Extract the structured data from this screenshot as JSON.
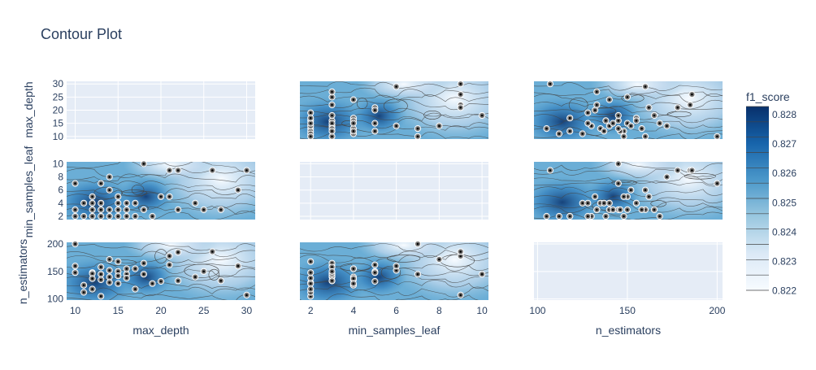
{
  "page": {
    "title": "Contour Plot"
  },
  "chart_data": {
    "type": "contour",
    "title": "Contour Plot",
    "params": [
      "max_depth",
      "min_samples_leaf",
      "n_estimators"
    ],
    "ranges": {
      "max_depth": [
        9,
        31
      ],
      "min_samples_leaf": [
        1.5,
        10.3
      ],
      "n_estimators": [
        98,
        203
      ]
    },
    "ticks": {
      "max_depth": {
        "x": [
          10,
          15,
          20,
          25,
          30
        ],
        "y": [
          10,
          15,
          20,
          25,
          30
        ]
      },
      "min_samples_leaf": {
        "x": [
          2,
          4,
          6,
          8,
          10
        ],
        "y": [
          2,
          4,
          6,
          8,
          10
        ]
      },
      "n_estimators": {
        "x": [
          100,
          150,
          200
        ],
        "y": [
          100,
          150,
          200
        ]
      }
    },
    "colorbar": {
      "title": "f1_score",
      "ticks": [
        "0.828",
        "0.827",
        "0.826",
        "0.825",
        "0.824",
        "0.823",
        "0.822"
      ],
      "colors": [
        "#08306b",
        "#1764ab",
        "#4b98ca",
        "#9ac8e0",
        "#dbe9f6",
        "#f7fbff"
      ]
    },
    "trials": [
      {
        "max_depth": 13,
        "min_samples_leaf": 2,
        "n_estimators": 105
      },
      {
        "max_depth": 14,
        "min_samples_leaf": 3,
        "n_estimators": 140
      },
      {
        "max_depth": 12,
        "min_samples_leaf": 2,
        "n_estimators": 118
      },
      {
        "max_depth": 15,
        "min_samples_leaf": 5,
        "n_estimators": 150
      },
      {
        "max_depth": 10,
        "min_samples_leaf": 3,
        "n_estimators": 160
      },
      {
        "max_depth": 17,
        "min_samples_leaf": 4,
        "n_estimators": 155
      },
      {
        "max_depth": 14,
        "min_samples_leaf": 2,
        "n_estimators": 130
      },
      {
        "max_depth": 11,
        "min_samples_leaf": 2,
        "n_estimators": 112
      },
      {
        "max_depth": 16,
        "min_samples_leaf": 3,
        "n_estimators": 145
      },
      {
        "max_depth": 18,
        "min_samples_leaf": 3,
        "n_estimators": 165
      },
      {
        "max_depth": 13,
        "min_samples_leaf": 4,
        "n_estimators": 135
      },
      {
        "max_depth": 12,
        "min_samples_leaf": 5,
        "n_estimators": 148
      },
      {
        "max_depth": 19,
        "min_samples_leaf": 2,
        "n_estimators": 128
      },
      {
        "max_depth": 15,
        "min_samples_leaf": 3,
        "n_estimators": 142
      },
      {
        "max_depth": 14,
        "min_samples_leaf": 6,
        "n_estimators": 152
      },
      {
        "max_depth": 16,
        "min_samples_leaf": 2,
        "n_estimators": 138
      },
      {
        "max_depth": 13,
        "min_samples_leaf": 3,
        "n_estimators": 158
      },
      {
        "max_depth": 21,
        "min_samples_leaf": 5,
        "n_estimators": 162
      },
      {
        "max_depth": 20,
        "min_samples_leaf": 5,
        "n_estimators": 132
      },
      {
        "max_depth": 22,
        "min_samples_leaf": 3,
        "n_estimators": 133
      },
      {
        "max_depth": 11,
        "min_samples_leaf": 4,
        "n_estimators": 125
      },
      {
        "max_depth": 15,
        "min_samples_leaf": 2,
        "n_estimators": 168
      },
      {
        "max_depth": 16,
        "min_samples_leaf": 4,
        "n_estimators": 155
      },
      {
        "max_depth": 12,
        "min_samples_leaf": 3,
        "n_estimators": 146
      },
      {
        "max_depth": 18,
        "min_samples_leaf": 10,
        "n_estimators": 145
      },
      {
        "max_depth": 14,
        "min_samples_leaf": 8,
        "n_estimators": 172
      },
      {
        "max_depth": 10,
        "min_samples_leaf": 7,
        "n_estimators": 200
      },
      {
        "max_depth": 22,
        "min_samples_leaf": 9,
        "n_estimators": 185
      },
      {
        "max_depth": 21,
        "min_samples_leaf": 9,
        "n_estimators": 178
      },
      {
        "max_depth": 26,
        "min_samples_leaf": 9,
        "n_estimators": 186
      },
      {
        "max_depth": 30,
        "min_samples_leaf": 9,
        "n_estimators": 107
      },
      {
        "max_depth": 29,
        "min_samples_leaf": 6,
        "n_estimators": 160
      },
      {
        "max_depth": 24,
        "min_samples_leaf": 4,
        "n_estimators": 140
      },
      {
        "max_depth": 25,
        "min_samples_leaf": 3,
        "n_estimators": 150
      },
      {
        "max_depth": 27,
        "min_samples_leaf": 3,
        "n_estimators": 133
      },
      {
        "max_depth": 17,
        "min_samples_leaf": 2,
        "n_estimators": 118
      },
      {
        "max_depth": 13,
        "min_samples_leaf": 7,
        "n_estimators": 145
      },
      {
        "max_depth": 12,
        "min_samples_leaf": 4,
        "n_estimators": 137
      },
      {
        "max_depth": 15,
        "min_samples_leaf": 4,
        "n_estimators": 128
      },
      {
        "max_depth": 10,
        "min_samples_leaf": 2,
        "n_estimators": 148
      }
    ]
  }
}
